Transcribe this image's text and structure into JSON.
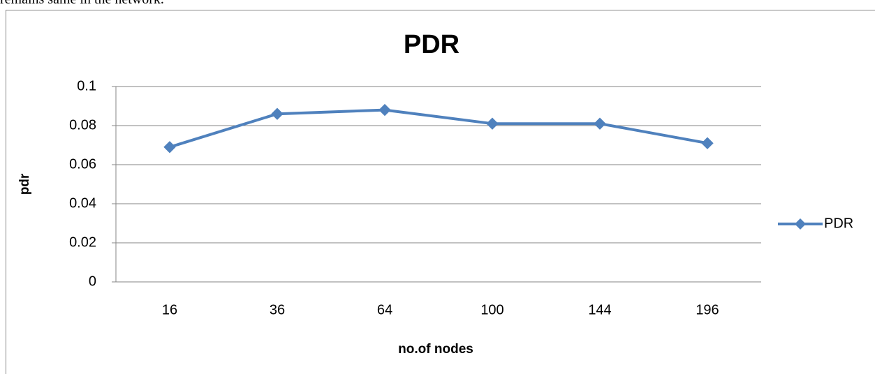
{
  "text_above": "remains same in the network.",
  "chart_data": {
    "type": "line",
    "title": "PDR",
    "x_label": "no.of nodes",
    "y_label": "pdr",
    "categories": [
      "16",
      "36",
      "64",
      "100",
      "144",
      "196"
    ],
    "series": [
      {
        "name": "PDR",
        "color": "#4f81bd",
        "values": [
          0.069,
          0.086,
          0.088,
          0.081,
          0.081,
          0.071
        ]
      }
    ],
    "ylim": [
      0,
      0.1
    ],
    "yticks": [
      0,
      0.02,
      0.04,
      0.06,
      0.08,
      0.1
    ],
    "grid": true,
    "legend": "right"
  }
}
